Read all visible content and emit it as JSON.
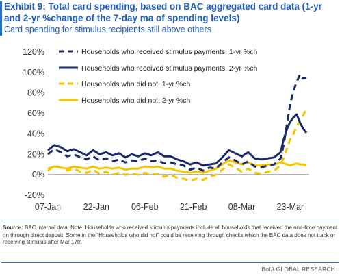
{
  "header": {
    "title": "Exhibit 9: Total card spending, based on BAC aggregated card data (1-yr and 2-yr %change of the 7-day ma of spending levels)",
    "subtitle": "Card spending for stimulus recipients still above others"
  },
  "footer": {
    "source_label": "Source:",
    "source_text": "BAC internal data. Note: Households who received stimulus payments include all households that received the one-time payment on through direct deposit. Some in the \"Households who did not\" could be receiving through checks which the BAC data does not track or receiving stimulus after Mar 17th",
    "credit": "BofA GLOBAL RESEARCH"
  },
  "colors": {
    "navy": "#1b2a6b",
    "gold": "#f5c400",
    "title_blue": "#1f5fbf"
  },
  "chart_data": {
    "type": "line",
    "xlabel": "",
    "ylabel": "",
    "ylim": [
      -0.2,
      1.2
    ],
    "y_ticks": [
      "-20%",
      "0%",
      "20%",
      "40%",
      "60%",
      "80%",
      "100%",
      "120%"
    ],
    "y_tick_values": [
      -0.2,
      0,
      0.2,
      0.4,
      0.6,
      0.8,
      1.0,
      1.2
    ],
    "x_ticks": [
      "07-Jan",
      "22-Jan",
      "06-Feb",
      "21-Feb",
      "08-Mar",
      "23-Mar"
    ],
    "x_tick_days": [
      0,
      15,
      30,
      45,
      60,
      75
    ],
    "x_days": [
      0,
      2,
      4,
      6,
      8,
      10,
      12,
      14,
      16,
      18,
      20,
      22,
      24,
      26,
      28,
      30,
      32,
      34,
      36,
      38,
      40,
      42,
      44,
      46,
      48,
      50,
      52,
      54,
      56,
      58,
      60,
      62,
      64,
      66,
      68,
      70,
      72,
      73,
      74,
      75,
      76,
      77,
      78,
      79,
      80
    ],
    "legend_position": "top-right",
    "grid": false,
    "series": [
      {
        "name": "Households who received stimulus payments: 1-yr %ch",
        "style": "dashed",
        "color": "#1b2a6b",
        "values": [
          0.2,
          0.25,
          0.22,
          0.18,
          0.2,
          0.17,
          0.15,
          0.18,
          0.14,
          0.16,
          0.13,
          0.15,
          0.12,
          0.14,
          0.13,
          0.16,
          0.13,
          0.14,
          0.11,
          0.12,
          0.1,
          0.09,
          0.05,
          0.07,
          0.04,
          0.07,
          0.06,
          0.12,
          0.17,
          0.14,
          0.1,
          0.13,
          0.08,
          0.07,
          0.09,
          0.1,
          0.16,
          0.3,
          0.5,
          0.7,
          0.82,
          0.91,
          0.98,
          0.94,
          0.95
        ]
      },
      {
        "name": "Households who received stimulus payments: 2-yr %ch",
        "style": "solid",
        "color": "#1b2a6b",
        "values": [
          0.24,
          0.29,
          0.27,
          0.23,
          0.25,
          0.22,
          0.19,
          0.24,
          0.2,
          0.22,
          0.19,
          0.21,
          0.17,
          0.2,
          0.18,
          0.21,
          0.19,
          0.22,
          0.18,
          0.18,
          0.15,
          0.13,
          0.1,
          0.12,
          0.09,
          0.1,
          0.11,
          0.17,
          0.24,
          0.21,
          0.18,
          0.22,
          0.16,
          0.15,
          0.16,
          0.17,
          0.22,
          0.35,
          0.45,
          0.52,
          0.56,
          0.59,
          0.51,
          0.45,
          0.41
        ]
      },
      {
        "name": "Households who did not: 1-yr %ch",
        "style": "dashed",
        "color": "#f5c400",
        "values": [
          0.04,
          0.09,
          0.07,
          0.04,
          0.06,
          0.03,
          0.02,
          0.05,
          0.01,
          0.03,
          0.0,
          0.02,
          0.0,
          0.01,
          0.0,
          0.02,
          0.0,
          0.01,
          -0.02,
          0.0,
          -0.03,
          -0.04,
          -0.06,
          -0.04,
          -0.05,
          -0.02,
          0.0,
          0.05,
          0.1,
          0.07,
          0.03,
          0.06,
          0.02,
          0.01,
          0.03,
          0.04,
          0.09,
          0.17,
          0.26,
          0.35,
          0.4,
          0.47,
          0.53,
          0.58,
          0.65
        ]
      },
      {
        "name": "Households who did not: 2-yr %ch",
        "style": "solid",
        "color": "#f5c400",
        "values": [
          0.06,
          0.08,
          0.07,
          0.06,
          0.08,
          0.07,
          0.06,
          0.08,
          0.06,
          0.07,
          0.06,
          0.07,
          0.05,
          0.06,
          0.06,
          0.08,
          0.07,
          0.08,
          0.06,
          0.06,
          0.04,
          0.03,
          0.02,
          0.03,
          0.02,
          0.04,
          0.06,
          0.1,
          0.14,
          0.12,
          0.1,
          0.12,
          0.09,
          0.09,
          0.1,
          0.1,
          0.12,
          0.11,
          0.1,
          0.09,
          0.1,
          0.11,
          0.1,
          0.1,
          0.09
        ]
      }
    ]
  }
}
